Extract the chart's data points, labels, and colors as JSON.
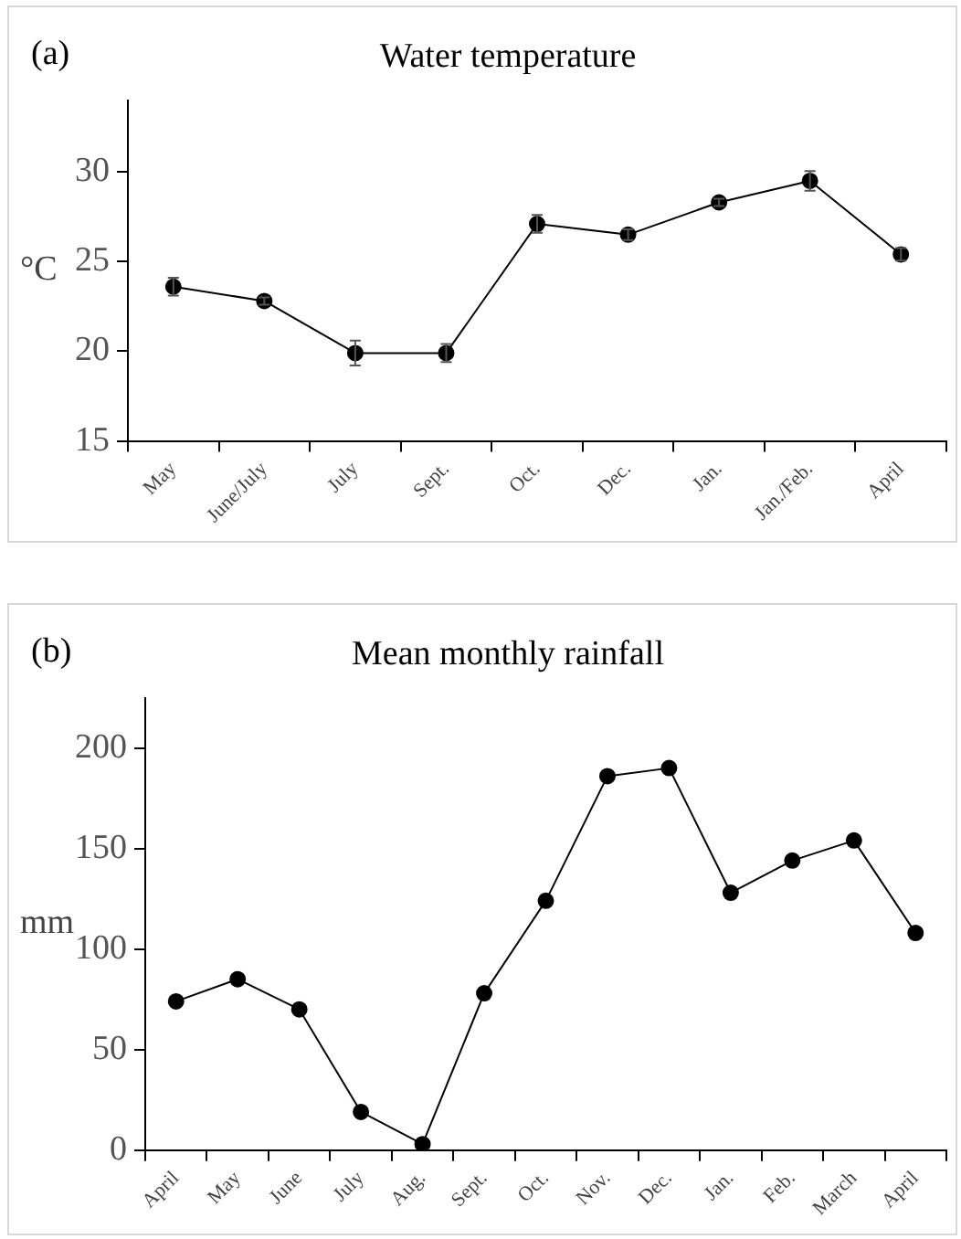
{
  "chart_data": [
    {
      "type": "line",
      "title": "Water temperature",
      "ylabel": "°C",
      "annotations": [
        "(a)"
      ],
      "categories": [
        "May",
        "June/July",
        "July",
        "Sept.",
        "Oct.",
        "Dec.",
        "Jan.",
        "Jan./Feb.",
        "April"
      ],
      "series": [
        {
          "color": "#000000",
          "values": [
            23.6,
            22.8,
            19.9,
            19.9,
            27.1,
            26.5,
            28.3,
            29.5,
            25.4
          ],
          "errors": [
            0.5,
            0.2,
            0.7,
            0.5,
            0.5,
            0.3,
            0.2,
            0.55,
            0.35
          ]
        }
      ],
      "ylim": [
        15,
        34
      ],
      "yticks": [
        15,
        20,
        25,
        30
      ],
      "grid": false,
      "legend": false,
      "marker": "circle",
      "line_style": "solid"
    },
    {
      "type": "line",
      "title": "Mean monthly rainfall",
      "ylabel": "mm",
      "annotations": [
        "(b)"
      ],
      "categories": [
        "April",
        "May",
        "June",
        "July",
        "Aug.",
        "Sept.",
        "Oct.",
        "Nov.",
        "Dec.",
        "Jan.",
        "Feb.",
        "March",
        "April"
      ],
      "series": [
        {
          "color": "#000000",
          "values": [
            74,
            85,
            70,
            19,
            3,
            78,
            124,
            186,
            190,
            128,
            144,
            154,
            108
          ]
        }
      ],
      "ylim": [
        0,
        225
      ],
      "yticks": [
        0,
        50,
        100,
        150,
        200
      ],
      "grid": false,
      "legend": false,
      "marker": "circle",
      "line_style": "solid"
    }
  ]
}
